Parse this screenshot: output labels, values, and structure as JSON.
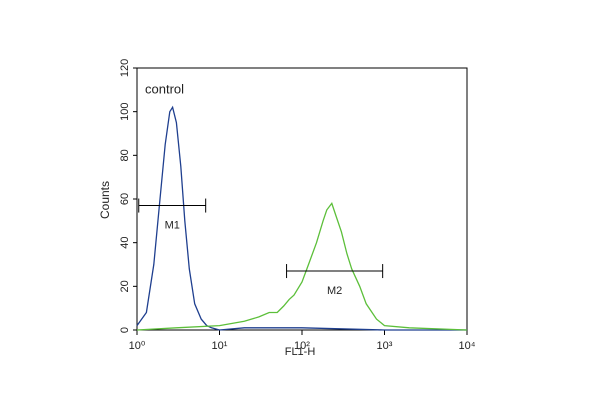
{
  "chart_data": {
    "type": "line",
    "xscale": "log",
    "xlabel": "FL1-H",
    "ylabel": "Counts",
    "xlim": [
      1,
      10000
    ],
    "ylim": [
      0,
      120
    ],
    "xticks": [
      {
        "value": 1,
        "label": "10⁰"
      },
      {
        "value": 10,
        "label": "10¹"
      },
      {
        "value": 100,
        "label": "10²"
      },
      {
        "value": 1000,
        "label": "10³"
      },
      {
        "value": 10000,
        "label": "10⁴"
      }
    ],
    "yticks": [
      0,
      20,
      40,
      60,
      80,
      100,
      120
    ],
    "annotations": [
      "control"
    ],
    "series": [
      {
        "color": "#1f3f8f",
        "x": [
          1,
          1.3,
          1.6,
          1.9,
          2.2,
          2.5,
          2.7,
          3.0,
          3.4,
          3.8,
          4.3,
          5,
          6,
          7,
          8,
          10,
          20,
          50,
          100,
          1000,
          10000
        ],
        "values": [
          2,
          8,
          30,
          60,
          85,
          100,
          102,
          95,
          75,
          50,
          28,
          12,
          5,
          2,
          1,
          0,
          1,
          1,
          1,
          0,
          0
        ]
      },
      {
        "color": "#5cbf3a",
        "x": [
          1,
          3,
          10,
          20,
          30,
          40,
          50,
          60,
          70,
          80,
          100,
          120,
          150,
          180,
          200,
          230,
          260,
          300,
          350,
          400,
          500,
          600,
          800,
          1000,
          2000,
          10000
        ],
        "values": [
          0,
          1,
          2,
          4,
          6,
          8,
          8,
          11,
          14,
          16,
          22,
          30,
          40,
          50,
          55,
          58,
          52,
          45,
          35,
          28,
          20,
          12,
          5,
          2,
          1,
          0
        ]
      }
    ],
    "markers": [
      {
        "label": "M1",
        "range": [
          1.05,
          6.8
        ],
        "y": 57
      },
      {
        "label": "M2",
        "range": [
          65,
          950
        ],
        "y": 27
      }
    ]
  }
}
